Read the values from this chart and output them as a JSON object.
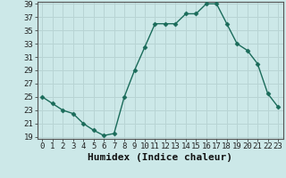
{
  "x": [
    0,
    1,
    2,
    3,
    4,
    5,
    6,
    7,
    8,
    9,
    10,
    11,
    12,
    13,
    14,
    15,
    16,
    17,
    18,
    19,
    20,
    21,
    22,
    23
  ],
  "y": [
    25,
    24,
    23,
    22.5,
    21,
    20,
    19.2,
    19.5,
    25,
    29,
    32.5,
    36,
    36,
    36,
    37.5,
    37.5,
    39,
    39,
    36,
    33,
    32,
    30,
    25.5,
    23.5
  ],
  "line_color": "#1a6b5a",
  "marker": "D",
  "marker_size": 2.5,
  "bg_color": "#cce8e8",
  "grid_color": "#b8d4d4",
  "xlabel": "Humidex (Indice chaleur)",
  "ylim": [
    19,
    39
  ],
  "xlim": [
    -0.5,
    23.5
  ],
  "yticks": [
    19,
    21,
    23,
    25,
    27,
    29,
    31,
    33,
    35,
    37,
    39
  ],
  "xticks": [
    0,
    1,
    2,
    3,
    4,
    5,
    6,
    7,
    8,
    9,
    10,
    11,
    12,
    13,
    14,
    15,
    16,
    17,
    18,
    19,
    20,
    21,
    22,
    23
  ],
  "tick_fontsize": 6.5,
  "xlabel_fontsize": 8,
  "spine_color": "#555555"
}
